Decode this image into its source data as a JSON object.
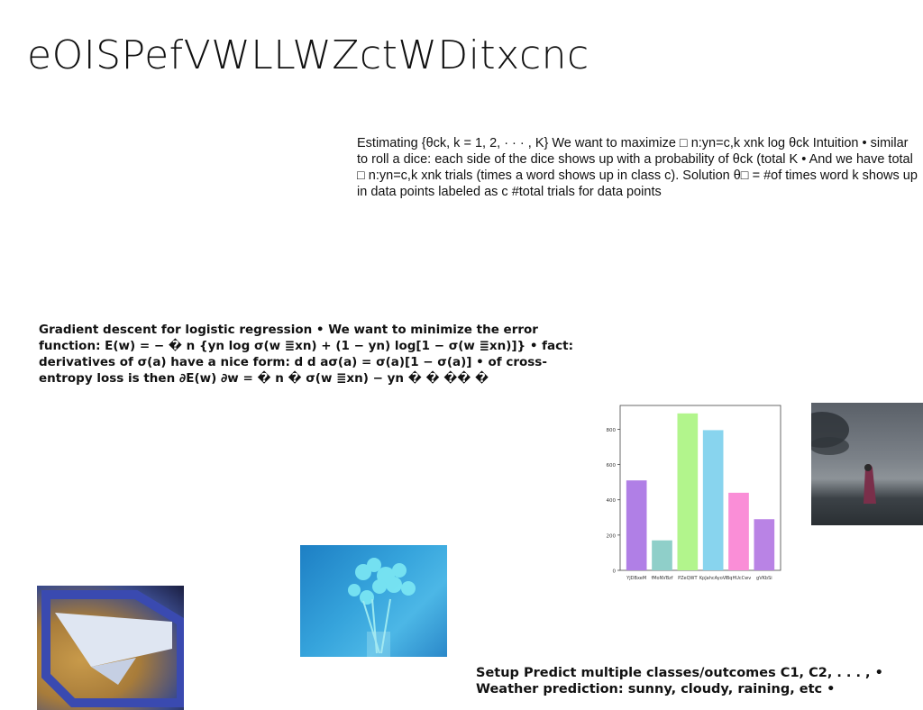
{
  "slide": {
    "title": "eOISPefVWLLWZctWDitxcnc",
    "paragraphs": {
      "estimating": "Estimating {θck, k = 1, 2, · · · , K} We want to maximize □ n:yn=c,k xnk log θck Intuition • similar to roll a dice: each side of the dice shows up with a probability of θck (total K • And we have total □ n:yn=c,k xnk trials (times a word shows up in class c). Solution θ□ = #of times word k shows up in data points labeled as c #total trials for data points",
      "gradient": "Gradient descent for logistic regression • We want to minimize the error function: E(w) = − � n {yn log σ(w ≣xn) + (1 − yn) log[1 − σ(w ≣xn)]} • fact: derivatives of σ(a) have a nice form: d d aσ(a) = σ(a)[1 − σ(a)] • of cross-entropy loss is then ∂E(w) ∂w = � n � σ(w ≣xn) − yn � � �� �",
      "setup": "Setup Predict multiple classes/outcomes C1, C2, . . . , • Weather prediction: sunny, cloudy, raining, etc •"
    },
    "images": {
      "sea": "woman-by-sea-photo",
      "flowers": "blue-flowers-photo",
      "window": "airplane-window-photo"
    }
  },
  "chart_data": {
    "type": "bar",
    "categories": [
      "YJDBxeM",
      "fMoNVBzf",
      "PZeQWT",
      "KpJahcAyoVl",
      "BqHUcCwv",
      "gVKbSi"
    ],
    "values": [
      510,
      170,
      890,
      795,
      440,
      290
    ],
    "colors": [
      "#b07fe6",
      "#8fcfc9",
      "#b2f58c",
      "#88d4ee",
      "#fa8ed7",
      "#b983e5"
    ],
    "yticks": [
      0,
      200,
      400,
      600,
      800
    ],
    "ylim": [
      0,
      935
    ],
    "title": "",
    "xlabel": "",
    "ylabel": ""
  }
}
